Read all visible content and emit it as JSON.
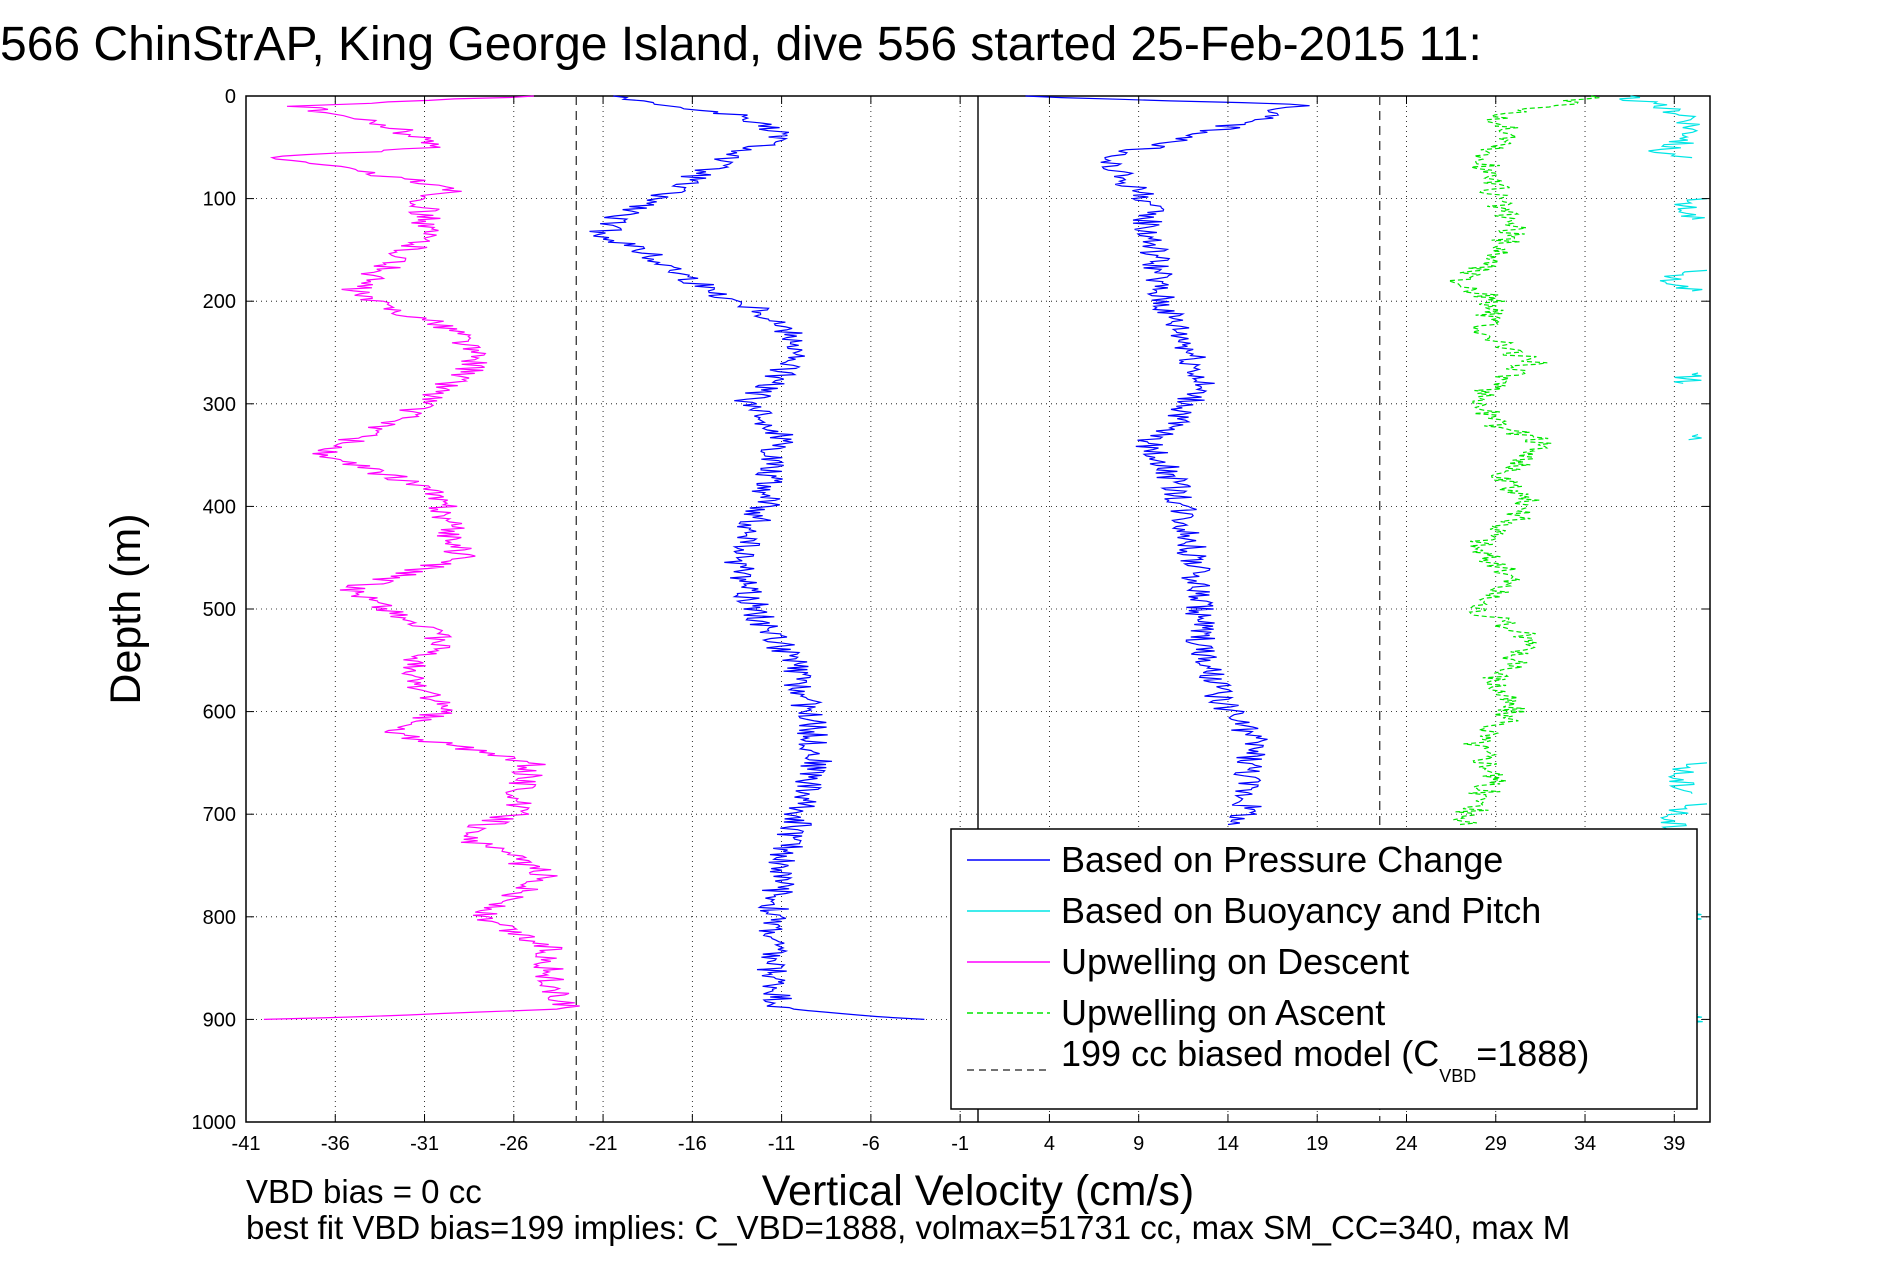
{
  "chart_data": {
    "type": "line",
    "title": "566 ChinStrAP, King George Island, dive 556 started 25-Feb-2015 11:",
    "xlabel": "Vertical Velocity (cm/s)",
    "ylabel": "Depth (m)",
    "xlim": [
      -41,
      41
    ],
    "ylim": [
      1000,
      0
    ],
    "y_reversed": true,
    "grid": true,
    "legend_position": "lower-right",
    "xticks": [
      -41,
      -36,
      -31,
      -26,
      -21,
      -16,
      -11,
      -6,
      -1,
      4,
      9,
      14,
      19,
      24,
      29,
      34,
      39
    ],
    "yticks": [
      0,
      100,
      200,
      300,
      400,
      500,
      600,
      700,
      800,
      900,
      1000
    ],
    "vertical_lines": [
      {
        "x": 0,
        "style": "solid",
        "color": "#000000"
      },
      {
        "x": -22.5,
        "style": "dashed",
        "color": "#444444"
      },
      {
        "x": 22.5,
        "style": "dashed",
        "color": "#444444"
      }
    ],
    "series": [
      {
        "name": "Based on Pressure Change",
        "color": "#0000ff",
        "style": "solid",
        "segments": [
          {
            "depth": [
              0,
              8,
              20,
              40,
              60,
              80,
              100,
              120,
              135,
              150,
              170,
              190,
              210,
              240,
              270,
              300,
              330,
              360,
              400,
              450,
              500,
              550,
              600,
              650,
              700,
              750,
              800,
              850,
              890,
              900
            ],
            "velocity": [
              -20,
              -18,
              -13,
              -11,
              -14,
              -16,
              -18,
              -20.5,
              -21,
              -19,
              -17,
              -15,
              -12,
              -10,
              -11,
              -13,
              -11,
              -11.5,
              -12,
              -13.5,
              -12.5,
              -10.5,
              -9.5,
              -9,
              -10,
              -11,
              -11.5,
              -11.5,
              -11,
              -3
            ]
          },
          {
            "depth": [
              0,
              8,
              20,
              40,
              60,
              80,
              100,
              130,
              160,
              190,
              220,
              250,
              280,
              310,
              340,
              360,
              400,
              450,
              500,
              550,
              600,
              630,
              670,
              700,
              710
            ],
            "velocity": [
              2,
              18,
              16,
              12,
              7,
              8,
              9.5,
              9.5,
              10,
              10,
              11,
              12,
              12.5,
              11.5,
              9.5,
              10.5,
              11.5,
              12,
              12.5,
              12.5,
              14,
              15.5,
              15,
              15,
              14
            ]
          }
        ]
      },
      {
        "name": "Based on Buoyancy and Pitch",
        "color": "#00e5e5",
        "style": "solid",
        "segments": [
          {
            "depth": [
              0,
              10,
              20,
              40,
              55,
              60
            ],
            "velocity": [
              36,
              38,
              40,
              40,
              38,
              40
            ]
          },
          {
            "depth": [
              100,
              110,
              120
            ],
            "velocity": [
              40,
              39.5,
              40
            ]
          },
          {
            "depth": [
              170,
              180,
              190
            ],
            "velocity": [
              40,
              38.5,
              40
            ]
          },
          {
            "depth": [
              270,
              280
            ],
            "velocity": [
              40,
              39.5
            ]
          },
          {
            "depth": [
              330,
              335
            ],
            "velocity": [
              40,
              39.8
            ]
          },
          {
            "depth": [
              650,
              665,
              680
            ],
            "velocity": [
              40,
              39,
              40
            ]
          },
          {
            "depth": [
              690,
              705,
              725
            ],
            "velocity": [
              40,
              38.5,
              40
            ]
          },
          {
            "depth": [
              795,
              805
            ],
            "velocity": [
              40,
              39.5
            ]
          },
          {
            "depth": [
              895,
              905
            ],
            "velocity": [
              40,
              39.6
            ]
          }
        ]
      },
      {
        "name": "Upwelling on Descent",
        "color": "#ff00ff",
        "style": "solid",
        "segments": [
          {
            "depth": [
              0,
              10,
              30,
              50,
              60,
              70,
              90,
              100,
              140,
              190,
              200,
              230,
              260,
              300,
              320,
              350,
              380,
              400,
              450,
              480,
              530,
              560,
              600,
              620,
              650,
              700,
              720,
              760,
              800,
              830,
              870,
              890,
              900
            ],
            "velocity": [
              -25,
              -38,
              -33,
              -30,
              -40,
              -36,
              -29,
              -31,
              -31,
              -35,
              -34,
              -29,
              -28,
              -31,
              -33,
              -37,
              -31,
              -30,
              -29,
              -35,
              -30,
              -32,
              -30,
              -33,
              -25,
              -26,
              -29,
              -24,
              -28,
              -24,
              -24,
              -23,
              -40
            ]
          }
        ]
      },
      {
        "name": "Upwelling on Ascent",
        "color": "#00e500",
        "style": "dashed",
        "segments": [
          {
            "depth": [
              0,
              20,
              40,
              60,
              80,
              100,
              130,
              160,
              180,
              200,
              230,
              260,
              290,
              320,
              340,
              370,
              400,
              440,
              470,
              500,
              530,
              570,
              600,
              630,
              660,
              690,
              710
            ],
            "velocity": [
              35,
              29,
              30,
              28,
              29,
              29,
              30,
              29,
              27,
              29,
              28,
              31,
              28,
              29,
              32,
              29,
              31,
              28,
              30,
              28,
              31,
              29,
              30,
              28,
              29,
              28,
              27
            ]
          }
        ]
      },
      {
        "name": "199 cc biased model (C_VBD=1888)",
        "color": "#444444",
        "style": "dashed",
        "segments": []
      }
    ]
  },
  "legend": {
    "items": [
      {
        "label": "Based on Pressure Change"
      },
      {
        "label": "Based on Buoyancy and Pitch"
      },
      {
        "label": "Upwelling on Descent"
      },
      {
        "label": "Upwelling on Ascent"
      },
      {
        "label_main": "199 cc biased model (C",
        "label_sub": "VBD",
        "label_end": "=1888)"
      }
    ]
  },
  "footer": {
    "line1": "VBD bias = 0 cc",
    "line2": "best fit VBD bias=199 implies: C_VBD=1888, volmax=51731 cc, max SM_CC=340, max M"
  }
}
